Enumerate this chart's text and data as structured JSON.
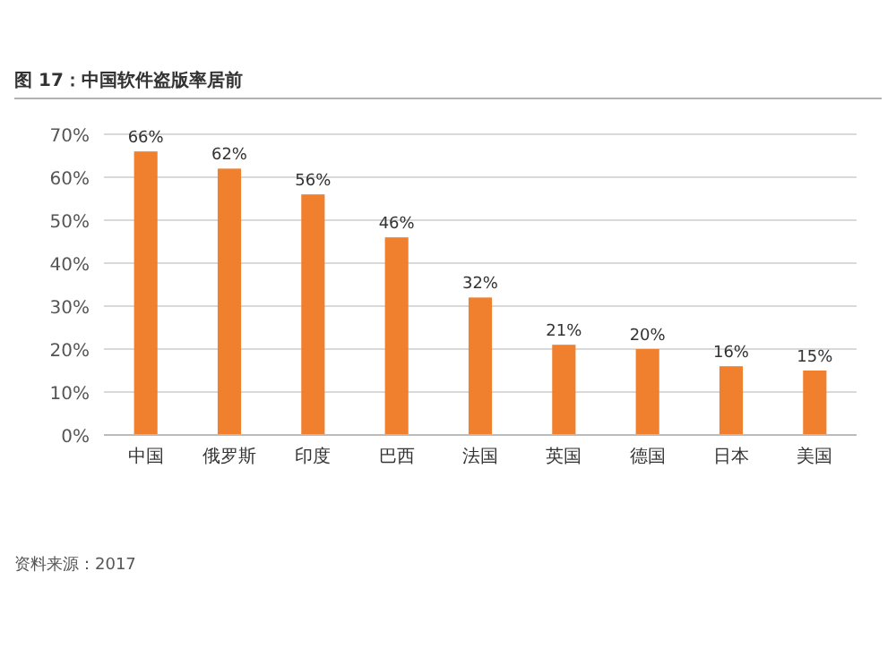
{
  "chart_data": {
    "type": "bar",
    "title": "图 17：中国软件盗版率居前",
    "categories": [
      "中国",
      "俄罗斯",
      "印度",
      "巴西",
      "法国",
      "英国",
      "德国",
      "日本",
      "美国"
    ],
    "values": [
      66,
      62,
      56,
      46,
      32,
      21,
      20,
      16,
      15
    ],
    "value_labels": [
      "66%",
      "62%",
      "56%",
      "46%",
      "32%",
      "21%",
      "20%",
      "16%",
      "15%"
    ],
    "color": "#f07f2e",
    "ylim": [
      0,
      70
    ],
    "yticks": [
      {
        "value": 0,
        "label": "0%"
      },
      {
        "value": 10,
        "label": "10%"
      },
      {
        "value": 20,
        "label": "20%"
      },
      {
        "value": 30,
        "label": "30%"
      },
      {
        "value": 40,
        "label": "40%"
      },
      {
        "value": 50,
        "label": "50%"
      },
      {
        "value": 60,
        "label": "60%"
      },
      {
        "value": 70,
        "label": "70%"
      }
    ],
    "grid": "y",
    "annotations": [
      "资料来源：2017"
    ]
  }
}
